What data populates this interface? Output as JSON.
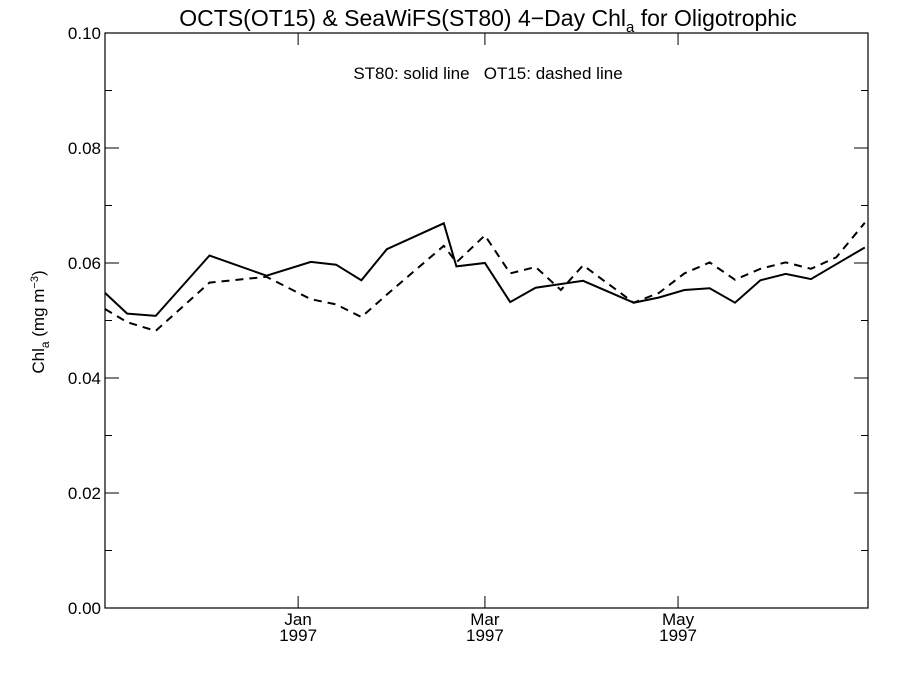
{
  "chart_data": {
    "type": "line",
    "title": {
      "prefix": "OCTS(OT15) & SeaWiFS(ST80) 4−Day Chl",
      "subscript": "a",
      "suffix": " for Oligotrophic"
    },
    "ylabel": {
      "prefix": "Chl",
      "subscript": "a",
      "middle": " (mg m",
      "superscript": "−3",
      "suffix": ")"
    },
    "xlabel": "",
    "annotation": "ST80: solid line   OT15: dashed line",
    "ylim": [
      0.0,
      0.1
    ],
    "y_ticks": [
      0.0,
      0.02,
      0.04,
      0.06,
      0.08,
      0.1
    ],
    "y_tick_labels": [
      "0.00",
      "0.02",
      "0.04",
      "0.06",
      "0.08",
      "0.10"
    ],
    "x_domain": [
      "1996-11-01",
      "1997-06-30"
    ],
    "x_tick_labels": [
      {
        "date": "1997-01-01",
        "month": "Jan",
        "year": "1997"
      },
      {
        "date": "1997-03-01",
        "month": "Mar",
        "year": "1997"
      },
      {
        "date": "1997-05-01",
        "month": "May",
        "year": "1997"
      }
    ],
    "grid": false,
    "series": [
      {
        "name": "ST80",
        "style": "solid",
        "x": [
          "1996-11-01",
          "1996-11-08",
          "1996-11-17",
          "1996-12-04",
          "1996-12-22",
          "1997-01-05",
          "1997-01-13",
          "1997-01-21",
          "1997-01-29",
          "1997-02-16",
          "1997-02-20",
          "1997-03-01",
          "1997-03-09",
          "1997-03-17",
          "1997-04-01",
          "1997-04-17",
          "1997-04-25",
          "1997-05-03",
          "1997-05-11",
          "1997-05-19",
          "1997-05-27",
          "1997-06-04",
          "1997-06-12",
          "1997-06-20",
          "1997-06-29"
        ],
        "y": [
          0.0548,
          0.0512,
          0.0508,
          0.0613,
          0.0578,
          0.0602,
          0.0597,
          0.057,
          0.0624,
          0.0669,
          0.0594,
          0.06,
          0.0532,
          0.0557,
          0.0569,
          0.0531,
          0.054,
          0.0553,
          0.0556,
          0.0531,
          0.057,
          0.0581,
          0.0572,
          0.0598,
          0.0627
        ]
      },
      {
        "name": "OT15",
        "style": "dashed",
        "x": [
          "1996-11-01",
          "1996-11-08",
          "1996-11-17",
          "1996-12-04",
          "1996-12-22",
          "1997-01-05",
          "1997-01-13",
          "1997-01-21",
          "1997-01-29",
          "1997-02-16",
          "1997-02-20",
          "1997-03-01",
          "1997-03-09",
          "1997-03-17",
          "1997-03-25",
          "1997-04-01",
          "1997-04-17",
          "1997-04-25",
          "1997-05-03",
          "1997-05-11",
          "1997-05-19",
          "1997-05-27",
          "1997-06-04",
          "1997-06-12",
          "1997-06-20",
          "1997-06-29"
        ],
        "y": [
          0.052,
          0.0497,
          0.0482,
          0.0566,
          0.0576,
          0.0537,
          0.0528,
          0.0506,
          0.0545,
          0.063,
          0.0601,
          0.0648,
          0.0582,
          0.0593,
          0.0553,
          0.0596,
          0.0531,
          0.0548,
          0.0582,
          0.0601,
          0.0571,
          0.059,
          0.0601,
          0.059,
          0.061,
          0.067
        ]
      }
    ]
  }
}
